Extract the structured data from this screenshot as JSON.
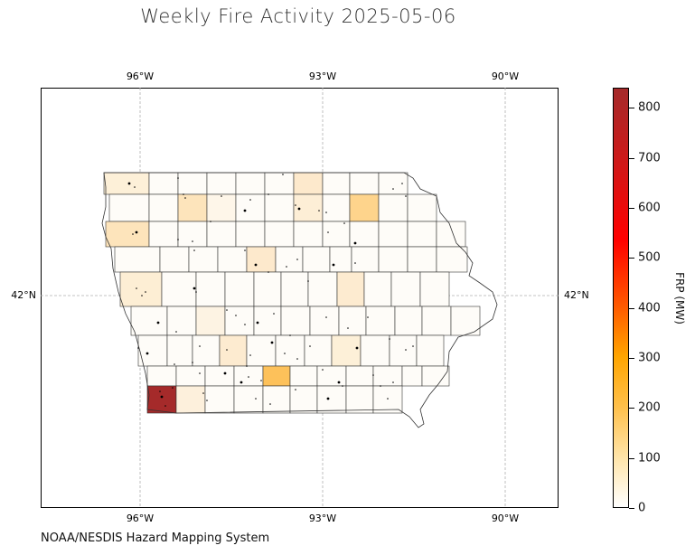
{
  "title": "Weekly Fire Activity 2025-05-06",
  "credit": "NOAA/NESDIS Hazard Mapping System",
  "map": {
    "longitude_ticks": [
      "96°W",
      "93°W",
      "90°W"
    ],
    "latitude_ticks": [
      "42°N"
    ],
    "region": "Iowa counties",
    "gridlines": true
  },
  "colorbar": {
    "title": "FRP (MW)",
    "ticks": [
      "0",
      "100",
      "200",
      "300",
      "400",
      "500",
      "600",
      "700",
      "800"
    ],
    "range": [
      0,
      840
    ],
    "colors": [
      "#ffffff",
      "#ffe4a8",
      "#ffa500",
      "#ff5a00",
      "#ff0000",
      "#a52a2a"
    ]
  }
}
